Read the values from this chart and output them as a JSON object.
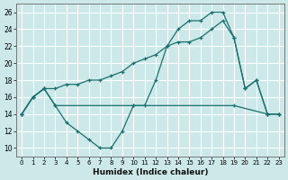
{
  "xlabel": "Humidex (Indice chaleur)",
  "background_color": "#cce8e8",
  "grid_color": "#ffffff",
  "line_color": "#1a7070",
  "xlim": [
    -0.5,
    23.5
  ],
  "ylim": [
    9,
    27
  ],
  "yticks": [
    10,
    12,
    14,
    16,
    18,
    20,
    22,
    24,
    26
  ],
  "xticks": [
    0,
    1,
    2,
    3,
    4,
    5,
    6,
    7,
    8,
    9,
    10,
    11,
    12,
    13,
    14,
    15,
    16,
    17,
    18,
    19,
    20,
    21,
    22,
    23
  ],
  "line1_x": [
    0,
    1,
    2,
    3,
    4,
    5,
    6,
    7,
    8,
    9,
    10,
    11,
    12,
    13,
    14,
    15,
    16,
    17,
    18,
    19,
    20,
    21,
    22,
    23
  ],
  "line1_y": [
    14,
    16,
    17,
    15,
    13,
    12,
    11,
    10,
    10,
    12,
    15,
    15,
    18,
    22,
    24,
    25,
    25,
    26,
    26,
    23,
    17,
    18,
    14,
    14
  ],
  "line2_x": [
    0,
    1,
    2,
    3,
    10,
    19,
    22,
    23
  ],
  "line2_y": [
    14,
    16,
    17,
    15,
    15,
    15,
    14,
    14
  ],
  "line3_x": [
    0,
    1,
    2,
    3,
    4,
    5,
    6,
    7,
    8,
    9,
    10,
    11,
    12,
    13,
    14,
    15,
    16,
    17,
    18,
    19,
    20,
    21,
    22,
    23
  ],
  "line3_y": [
    14,
    16,
    17,
    17,
    17.5,
    17.5,
    18,
    18,
    18.5,
    19,
    20,
    20.5,
    21,
    22,
    22.5,
    22.5,
    23,
    24,
    25,
    23,
    17,
    18,
    14,
    14
  ]
}
